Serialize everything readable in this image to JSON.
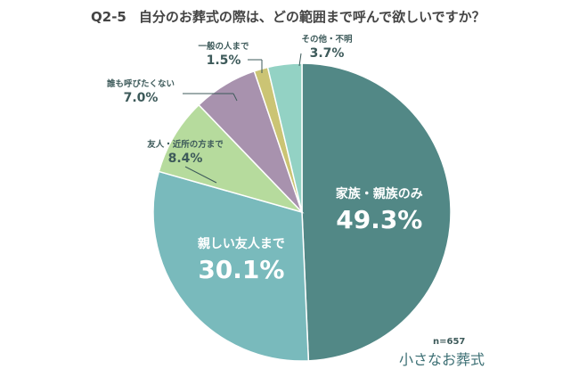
{
  "title": {
    "question_no": "Q2-5",
    "text": "自分のお葬式の際は、どの範囲まで呼んで欲しいですか？"
  },
  "sample_size": "n=657",
  "logo_text": "小さなお葬式",
  "chart_data": {
    "type": "pie",
    "title": "自分のお葬式の際は、どの範囲まで呼んで欲しいですか？",
    "start": "12 o'clock, clockwise",
    "slices": [
      {
        "label": "家族・親族のみ",
        "value": 49.3,
        "display": "49.3%",
        "color": "#528886",
        "label_placement": "inside"
      },
      {
        "label": "親しい友人まで",
        "value": 30.1,
        "display": "30.1%",
        "color": "#79babc",
        "label_placement": "inside"
      },
      {
        "label": "友人・近所の方まで",
        "value": 8.4,
        "display": "8.4%",
        "color": "#b6db9d",
        "label_placement": "outside"
      },
      {
        "label": "誰も呼びたくない",
        "value": 7.0,
        "display": "7.0%",
        "color": "#a892ae",
        "label_placement": "outside"
      },
      {
        "label": "一般の人まで",
        "value": 1.5,
        "display": "1.5%",
        "color": "#cbc474",
        "label_placement": "outside"
      },
      {
        "label": "その他・不明",
        "value": 3.7,
        "display": "3.7%",
        "color": "#93d2c4",
        "label_placement": "outside"
      }
    ]
  }
}
